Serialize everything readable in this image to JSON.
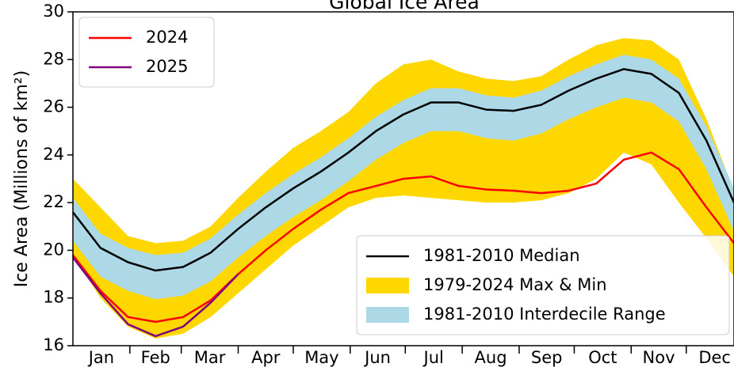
{
  "chart_data": {
    "type": "line",
    "title": "Global Ice Area",
    "ylabel": "Ice Area (Millions of km²)",
    "x": [
      0,
      15,
      30,
      45,
      60,
      75,
      90,
      105,
      120,
      135,
      150,
      165,
      180,
      195,
      210,
      225,
      240,
      255,
      270,
      285,
      300,
      315,
      330,
      345,
      360
    ],
    "xlim": [
      0,
      360
    ],
    "xticks": [
      {
        "value": 15.5,
        "label": "Jan"
      },
      {
        "value": 45,
        "label": "Feb"
      },
      {
        "value": 74.5,
        "label": "Mar"
      },
      {
        "value": 105,
        "label": "Apr"
      },
      {
        "value": 135.5,
        "label": "May"
      },
      {
        "value": 166,
        "label": "Jun"
      },
      {
        "value": 196.5,
        "label": "Jul"
      },
      {
        "value": 227.5,
        "label": "Aug"
      },
      {
        "value": 258,
        "label": "Sep"
      },
      {
        "value": 288.5,
        "label": "Oct"
      },
      {
        "value": 319,
        "label": "Nov"
      },
      {
        "value": 349.5,
        "label": "Dec"
      }
    ],
    "xminorticks": [
      31,
      59,
      90,
      120,
      151,
      181,
      212,
      243,
      273,
      304,
      334
    ],
    "ylim": [
      16,
      30
    ],
    "yticks": [
      16,
      18,
      20,
      22,
      24,
      26,
      28,
      30
    ],
    "bands": [
      {
        "name": "1979-2024 Max & Min",
        "color": "#ffd700",
        "legend": "lower-right",
        "upper": [
          23.0,
          21.8,
          20.6,
          20.3,
          20.4,
          21.0,
          22.2,
          23.3,
          24.3,
          25.0,
          25.8,
          27.0,
          27.8,
          28.0,
          27.5,
          27.2,
          27.1,
          27.3,
          28.0,
          28.6,
          28.9,
          28.8,
          28.0,
          25.5,
          22.5
        ],
        "lower": [
          19.8,
          18.0,
          16.8,
          16.3,
          16.5,
          17.2,
          18.2,
          19.2,
          20.2,
          21.0,
          21.8,
          22.2,
          22.3,
          22.2,
          22.1,
          22.0,
          22.0,
          22.1,
          22.4,
          23.0,
          24.1,
          23.6,
          22.0,
          20.5,
          18.9
        ]
      },
      {
        "name": "1981-2010 Interdecile Range",
        "color": "#add8e6",
        "legend": "lower-right",
        "upper": [
          22.2,
          20.7,
          20.1,
          19.8,
          19.9,
          20.5,
          21.5,
          22.4,
          23.2,
          23.9,
          24.7,
          25.6,
          26.3,
          26.8,
          26.8,
          26.5,
          26.4,
          26.7,
          27.3,
          27.8,
          28.2,
          28.0,
          27.2,
          25.2,
          22.6
        ],
        "lower": [
          20.4,
          18.9,
          18.3,
          17.95,
          18.1,
          18.7,
          19.7,
          20.6,
          21.4,
          22.1,
          22.9,
          23.8,
          24.5,
          25.0,
          25.0,
          24.7,
          24.6,
          24.9,
          25.5,
          26.0,
          26.4,
          26.2,
          25.4,
          23.4,
          20.8
        ]
      }
    ],
    "series": [
      {
        "name": "1981-2010 Median",
        "color": "#000000",
        "legend": "lower-right",
        "values": [
          21.6,
          20.1,
          19.5,
          19.15,
          19.3,
          19.9,
          20.9,
          21.8,
          22.6,
          23.3,
          24.1,
          25.0,
          25.7,
          26.2,
          26.2,
          25.9,
          25.85,
          26.1,
          26.7,
          27.2,
          27.6,
          27.4,
          26.6,
          24.6,
          22.0
        ]
      },
      {
        "name": "2024",
        "color": "#ff0000",
        "legend": "upper-left",
        "values": [
          19.8,
          18.3,
          17.2,
          17.0,
          17.2,
          17.9,
          19.0,
          20.0,
          20.9,
          21.7,
          22.4,
          22.7,
          23.0,
          23.1,
          22.7,
          22.55,
          22.5,
          22.4,
          22.5,
          22.8,
          23.8,
          24.1,
          23.4,
          21.8,
          20.3
        ]
      },
      {
        "name": "2025",
        "color": "#800080",
        "legend": "upper-left",
        "values": [
          19.7,
          18.2,
          16.9,
          16.4,
          16.8,
          17.8,
          19.0,
          null,
          null,
          null,
          null,
          null,
          null,
          null,
          null,
          null,
          null,
          null,
          null,
          null,
          null,
          null,
          null,
          null,
          null
        ]
      }
    ]
  }
}
